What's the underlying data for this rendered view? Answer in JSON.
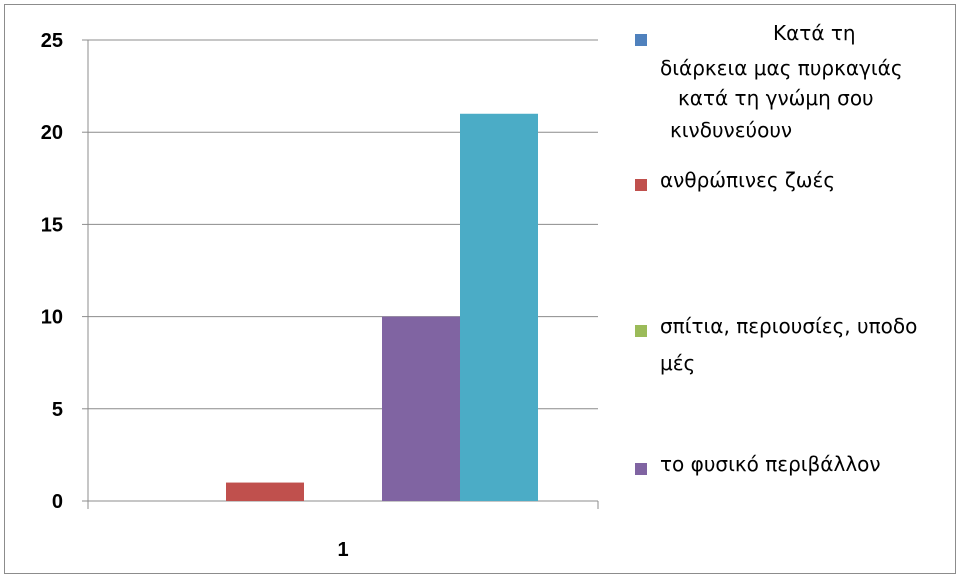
{
  "chart_data": {
    "type": "bar",
    "categories": [
      "1"
    ],
    "series": [
      {
        "name": "Κατά τη διάρκεια μας πυρκαγιάς κατά τη γνώμη σου κινδυνεύουν",
        "values": [
          0
        ],
        "color": "#4f81bd"
      },
      {
        "name": "ανθρώπινες ζωές",
        "values": [
          1
        ],
        "color": "#c0504d"
      },
      {
        "name": "σπίτια, περιουσίες, υποδομές",
        "values": [
          0
        ],
        "color": "#9bbb59"
      },
      {
        "name": "το φυσικό περιβάλλον",
        "values": [
          10
        ],
        "color": "#8064a2"
      },
      {
        "name": "",
        "values": [
          21
        ],
        "color": "#4bacc6"
      }
    ],
    "yticks": [
      0,
      5,
      10,
      15,
      20,
      25
    ],
    "ylim": [
      0,
      25
    ],
    "grid": true,
    "legend_position": "right",
    "legend_lines": [
      [
        "Κατά τη",
        "διάρκεια μας πυρκαγιάς",
        "κατά τη γνώμη σου",
        "κινδυνεύουν"
      ],
      [
        "ανθρώπινες ζωές"
      ],
      [
        "σπίτια, περιουσίες, υποδο",
        "μές"
      ],
      [
        "το φυσικό περιβάλλον"
      ]
    ]
  }
}
